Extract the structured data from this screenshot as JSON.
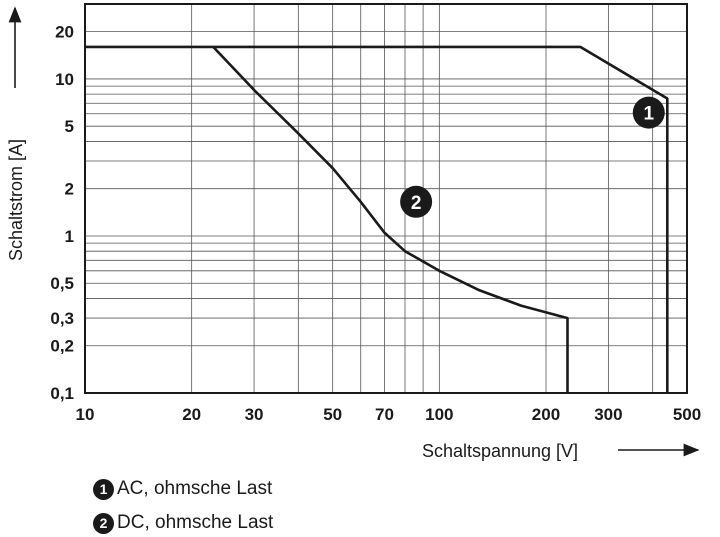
{
  "chart_data": {
    "type": "line",
    "xscale": "log",
    "yscale": "log",
    "xlabel": "Schaltspannung [V]",
    "ylabel": "Schaltstrom [A]",
    "xlim": [
      10,
      500
    ],
    "ylim": [
      0.1,
      30
    ],
    "x_ticks": [
      {
        "value": 10,
        "label": "10"
      },
      {
        "value": 20,
        "label": "20"
      },
      {
        "value": 30,
        "label": "30"
      },
      {
        "value": 50,
        "label": "50"
      },
      {
        "value": 70,
        "label": "70"
      },
      {
        "value": 100,
        "label": "100"
      },
      {
        "value": 200,
        "label": "200"
      },
      {
        "value": 300,
        "label": "300"
      },
      {
        "value": 500,
        "label": "500"
      }
    ],
    "y_ticks": [
      {
        "value": 0.1,
        "label": "0,1"
      },
      {
        "value": 0.2,
        "label": "0,2"
      },
      {
        "value": 0.3,
        "label": "0,3"
      },
      {
        "value": 0.5,
        "label": "0,5"
      },
      {
        "value": 1,
        "label": "1"
      },
      {
        "value": 2,
        "label": "2"
      },
      {
        "value": 5,
        "label": "5"
      },
      {
        "value": 10,
        "label": "10"
      },
      {
        "value": 20,
        "label": "20"
      }
    ],
    "series": [
      {
        "name": "1",
        "label": "AC, ohmsche Last",
        "marker_at": [
          390,
          6.1
        ],
        "points": [
          [
            10,
            16
          ],
          [
            250,
            16
          ],
          [
            440,
            7.5
          ],
          [
            440,
            0.1
          ]
        ]
      },
      {
        "name": "2",
        "label": "DC, ohmsche Last",
        "marker_at": [
          86,
          1.65
        ],
        "points": [
          [
            23,
            16
          ],
          [
            30,
            8.5
          ],
          [
            40,
            4.5
          ],
          [
            50,
            2.7
          ],
          [
            60,
            1.65
          ],
          [
            70,
            1.05
          ],
          [
            80,
            0.8
          ],
          [
            100,
            0.6
          ],
          [
            130,
            0.45
          ],
          [
            170,
            0.36
          ],
          [
            230,
            0.3
          ],
          [
            230,
            0.1
          ]
        ]
      }
    ]
  },
  "legend": {
    "items": [
      {
        "num": "1",
        "label": "AC, ohmsche Last"
      },
      {
        "num": "2",
        "label": "DC, ohmsche Last"
      }
    ]
  }
}
